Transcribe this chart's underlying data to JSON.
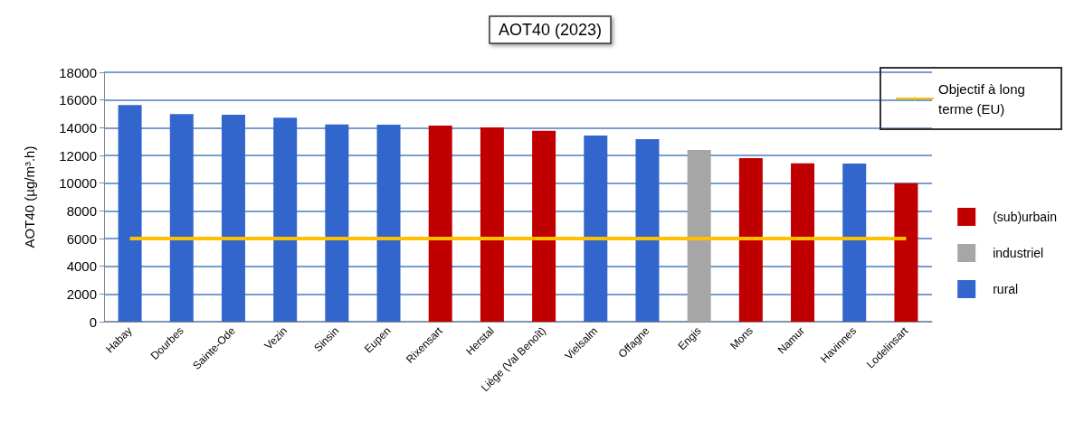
{
  "chart_data": {
    "type": "bar",
    "title": "AOT40 (2023)",
    "ylabel": "AOT40 (µg/m³.h)",
    "categories": [
      "Habay",
      "Dourbes",
      "Sainte-Ode",
      "Vezin",
      "Sinsin",
      "Eupen",
      "Rixensart",
      "Herstal",
      "Liège (Val Benoît)",
      "Vielsalm",
      "Offagne",
      "Engis",
      "Mons",
      "Namur",
      "Havinnes",
      "Lodelinsart"
    ],
    "series": [
      {
        "name": "(sub)urbain",
        "color": "#c00000",
        "values": [
          null,
          null,
          null,
          null,
          null,
          null,
          14160,
          14020,
          13770,
          null,
          null,
          null,
          11800,
          11430,
          null,
          10000
        ]
      },
      {
        "name": "industriel",
        "color": "#a6a6a6",
        "values": [
          null,
          null,
          null,
          null,
          null,
          null,
          null,
          null,
          null,
          null,
          null,
          12390,
          null,
          null,
          null,
          null
        ]
      },
      {
        "name": "rural",
        "color": "#3366cc",
        "values": [
          15630,
          14980,
          14930,
          14720,
          14230,
          14210,
          null,
          null,
          null,
          13430,
          13170,
          null,
          null,
          null,
          11410,
          null
        ]
      },
      {
        "name": "Objectif à long terme (EU)",
        "type": "line",
        "color": "#ffc000",
        "values": [
          6000,
          6000,
          6000,
          6000,
          6000,
          6000,
          6000,
          6000,
          6000,
          6000,
          6000,
          6000,
          6000,
          6000,
          6000,
          6000
        ]
      }
    ],
    "ylim": [
      0,
      18000
    ],
    "yticks": [
      0,
      2000,
      4000,
      6000,
      8000,
      10000,
      12000,
      14000,
      16000,
      18000
    ],
    "grid": "y",
    "legend": "right"
  }
}
